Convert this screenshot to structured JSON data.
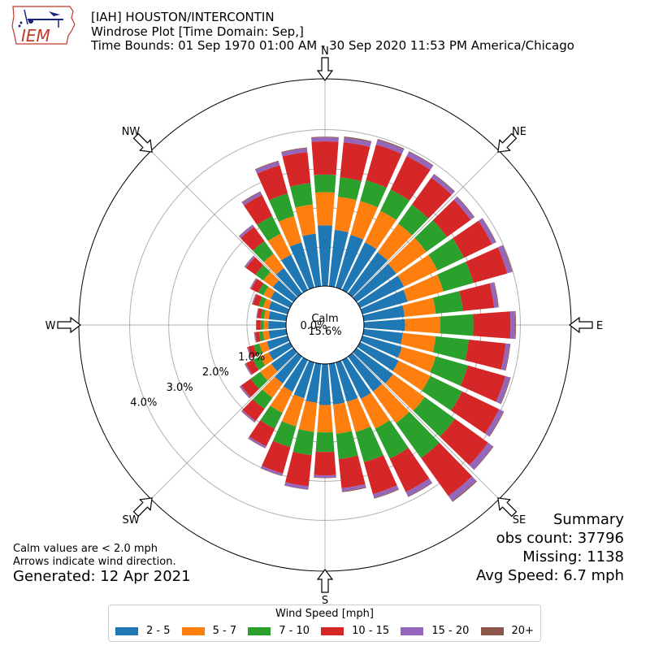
{
  "header": {
    "title_line1": "[IAH] HOUSTON/INTERCONTIN",
    "title_line2": "Windrose Plot [Time Domain: Sep,]",
    "title_line3": "Time Bounds: 01 Sep 1970 01:00 AM - 30 Sep 2020 11:53 PM America/Chicago"
  },
  "logo": {
    "text": "IEM"
  },
  "summary": {
    "heading": "Summary",
    "obs_count": "obs count: 37796",
    "missing": "Missing: 1138",
    "avg_speed": "Avg Speed: 6.7 mph"
  },
  "notes": {
    "calm_note": "Calm values are < 2.0 mph",
    "arrow_note": "Arrows indicate wind direction.",
    "generated": "Generated: 12 Apr 2021"
  },
  "chart_data": {
    "type": "windrose",
    "calm_label": "Calm",
    "calm_value": "15.6%",
    "radial_ticks": [
      "0.0%",
      "1.0%",
      "2.0%",
      "3.0%",
      "4.0%"
    ],
    "rmax": 5.3,
    "directions": [
      "N",
      "NE",
      "E",
      "SE",
      "S",
      "SW",
      "W",
      "NW"
    ],
    "legend_title": "Wind Speed [mph]",
    "bins": [
      {
        "label": "2 - 5",
        "color": "#1f77b4"
      },
      {
        "label": "5 - 7",
        "color": "#ff7f0e"
      },
      {
        "label": "7 - 10",
        "color": "#2ca02c"
      },
      {
        "label": "10 - 15",
        "color": "#d62728"
      },
      {
        "label": "15 - 20",
        "color": "#9467bd"
      },
      {
        "label": "20+",
        "color": "#8c564b"
      }
    ],
    "sectors": [
      {
        "dir": 0,
        "values": [
          1.55,
          0.85,
          0.45,
          0.85,
          0.1,
          0.02
        ]
      },
      {
        "dir": 10,
        "values": [
          1.45,
          0.85,
          0.5,
          0.9,
          0.12,
          0.03
        ]
      },
      {
        "dir": 20,
        "values": [
          1.4,
          0.9,
          0.55,
          0.95,
          0.12,
          0.03
        ]
      },
      {
        "dir": 30,
        "values": [
          1.35,
          0.9,
          0.6,
          0.95,
          0.12,
          0.02
        ]
      },
      {
        "dir": 40,
        "values": [
          1.3,
          0.9,
          0.6,
          0.85,
          0.1,
          0.02
        ]
      },
      {
        "dir": 50,
        "values": [
          1.25,
          0.95,
          0.65,
          0.75,
          0.1,
          0.02
        ]
      },
      {
        "dir": 60,
        "values": [
          1.25,
          0.95,
          0.75,
          0.8,
          0.1,
          0.02
        ]
      },
      {
        "dir": 70,
        "values": [
          1.2,
          0.95,
          0.8,
          0.9,
          0.12,
          0.02
        ]
      },
      {
        "dir": 80,
        "values": [
          1.05,
          0.8,
          0.7,
          0.8,
          0.1,
          0.02
        ]
      },
      {
        "dir": 90,
        "values": [
          1.05,
          0.9,
          0.85,
          0.95,
          0.12,
          0.02
        ]
      },
      {
        "dir": 100,
        "values": [
          1.0,
          0.85,
          0.85,
          0.95,
          0.1,
          0.02
        ]
      },
      {
        "dir": 110,
        "values": [
          1.05,
          0.9,
          0.85,
          1.0,
          0.12,
          0.02
        ]
      },
      {
        "dir": 120,
        "values": [
          1.1,
          0.9,
          0.9,
          1.05,
          0.12,
          0.02
        ]
      },
      {
        "dir": 130,
        "values": [
          1.15,
          1.0,
          0.95,
          1.05,
          0.15,
          0.02
        ]
      },
      {
        "dir": 140,
        "values": [
          1.1,
          1.0,
          1.1,
          1.2,
          0.15,
          0.03
        ]
      },
      {
        "dir": 150,
        "values": [
          1.1,
          0.85,
          0.85,
          0.95,
          0.12,
          0.02
        ]
      },
      {
        "dir": 160,
        "values": [
          1.05,
          0.8,
          0.8,
          0.85,
          0.1,
          0.02
        ]
      },
      {
        "dir": 170,
        "values": [
          1.05,
          0.75,
          0.65,
          0.75,
          0.08,
          0.02
        ]
      },
      {
        "dir": 180,
        "values": [
          1.05,
          0.7,
          0.5,
          0.6,
          0.06,
          0.01
        ]
      },
      {
        "dir": 190,
        "values": [
          1.0,
          0.75,
          0.6,
          0.8,
          0.08,
          0.01
        ]
      },
      {
        "dir": 200,
        "values": [
          0.95,
          0.75,
          0.55,
          0.7,
          0.06,
          0.01
        ]
      },
      {
        "dir": 210,
        "values": [
          0.9,
          0.6,
          0.45,
          0.5,
          0.05,
          0.01
        ]
      },
      {
        "dir": 220,
        "values": [
          0.85,
          0.45,
          0.35,
          0.38,
          0.04,
          0.01
        ]
      },
      {
        "dir": 230,
        "values": [
          0.7,
          0.35,
          0.3,
          0.3,
          0.04,
          0.01
        ]
      },
      {
        "dir": 240,
        "values": [
          0.6,
          0.25,
          0.2,
          0.2,
          0.03,
          0.01
        ]
      },
      {
        "dir": 250,
        "values": [
          0.55,
          0.2,
          0.15,
          0.15,
          0.02,
          0.01
        ]
      },
      {
        "dir": 260,
        "values": [
          0.45,
          0.15,
          0.1,
          0.1,
          0.02,
          0.01
        ]
      },
      {
        "dir": 270,
        "values": [
          0.45,
          0.12,
          0.08,
          0.1,
          0.02,
          0.0
        ]
      },
      {
        "dir": 280,
        "values": [
          0.45,
          0.12,
          0.08,
          0.1,
          0.02,
          0.0
        ]
      },
      {
        "dir": 290,
        "values": [
          0.5,
          0.15,
          0.12,
          0.15,
          0.02,
          0.01
        ]
      },
      {
        "dir": 300,
        "values": [
          0.55,
          0.2,
          0.15,
          0.2,
          0.03,
          0.01
        ]
      },
      {
        "dir": 310,
        "values": [
          0.65,
          0.3,
          0.25,
          0.3,
          0.04,
          0.01
        ]
      },
      {
        "dir": 320,
        "values": [
          0.8,
          0.45,
          0.4,
          0.45,
          0.06,
          0.01
        ]
      },
      {
        "dir": 330,
        "values": [
          1.0,
          0.6,
          0.5,
          0.6,
          0.08,
          0.02
        ]
      },
      {
        "dir": 340,
        "values": [
          1.2,
          0.7,
          0.6,
          0.75,
          0.1,
          0.02
        ]
      },
      {
        "dir": 350,
        "values": [
          1.35,
          0.75,
          0.55,
          0.8,
          0.1,
          0.02
        ]
      }
    ]
  }
}
